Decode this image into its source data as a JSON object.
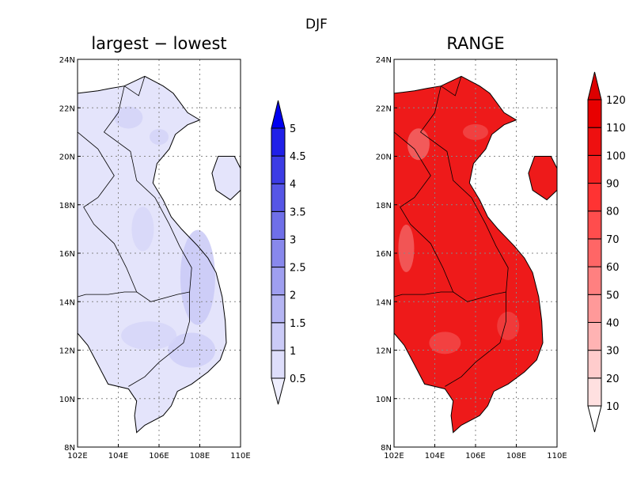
{
  "figure": {
    "season_title": "DJF",
    "panels": [
      {
        "title": "largest − lowest",
        "x_ticks": [
          "102E",
          "104E",
          "106E",
          "108E",
          "110E"
        ],
        "y_ticks": [
          "8N",
          "10N",
          "12N",
          "14N",
          "16N",
          "18N",
          "20N",
          "22N",
          "24N"
        ],
        "colorbar_labels": [
          "0.5",
          "1",
          "1.5",
          "2",
          "2.5",
          "3",
          "3.5",
          "4",
          "4.5",
          "5"
        ],
        "colorbar_colors": [
          "#eeeefe",
          "#dedefb",
          "#cbcbf7",
          "#b5b5f3",
          "#9f9ff0",
          "#8888ec",
          "#6f6fe8",
          "#5656e6",
          "#3c3ce5",
          "#2020e8",
          "#0000f0"
        ],
        "fill_color": "#e4e4fb"
      },
      {
        "title": "RANGE",
        "x_ticks": [
          "102E",
          "104E",
          "106E",
          "108E",
          "110E"
        ],
        "y_ticks": [
          "8N",
          "10N",
          "12N",
          "14N",
          "16N",
          "18N",
          "20N",
          "22N",
          "24N"
        ],
        "colorbar_labels": [
          "10",
          "20",
          "30",
          "40",
          "50",
          "60",
          "70",
          "80",
          "90",
          "100",
          "110",
          "120"
        ],
        "colorbar_colors": [
          "#ffffff",
          "#ffe0e0",
          "#ffcccc",
          "#ffb3b3",
          "#ff9999",
          "#ff8080",
          "#ff6666",
          "#ff4d4d",
          "#ff3333",
          "#f52020",
          "#ee1010",
          "#e80000",
          "#dd0000"
        ],
        "fill_color": "#ee1a1a"
      }
    ]
  },
  "chart_data": [
    {
      "type": "heatmap",
      "title": "largest − lowest",
      "xlim": [
        102,
        110
      ],
      "ylim": [
        8,
        24
      ],
      "x_ticks": [
        "102E",
        "104E",
        "106E",
        "108E",
        "110E"
      ],
      "y_ticks": [
        "8N",
        "10N",
        "12N",
        "14N",
        "16N",
        "18N",
        "20N",
        "22N",
        "24N"
      ],
      "grid": true,
      "colorbar_levels": [
        0.5,
        1,
        1.5,
        2,
        2.5,
        3,
        3.5,
        4,
        4.5,
        5
      ],
      "colorbar_extend": "both",
      "value_range_shown": [
        0.5,
        2.5
      ]
    },
    {
      "type": "heatmap",
      "title": "RANGE",
      "xlim": [
        102,
        110
      ],
      "ylim": [
        8,
        24
      ],
      "x_ticks": [
        "102E",
        "104E",
        "106E",
        "108E",
        "110E"
      ],
      "y_ticks": [
        "8N",
        "10N",
        "12N",
        "14N",
        "16N",
        "18N",
        "20N",
        "22N",
        "24N"
      ],
      "grid": true,
      "colorbar_levels": [
        10,
        20,
        30,
        40,
        50,
        60,
        70,
        80,
        90,
        100,
        110,
        120
      ],
      "colorbar_extend": "both",
      "value_range_shown": [
        80,
        120
      ]
    }
  ]
}
